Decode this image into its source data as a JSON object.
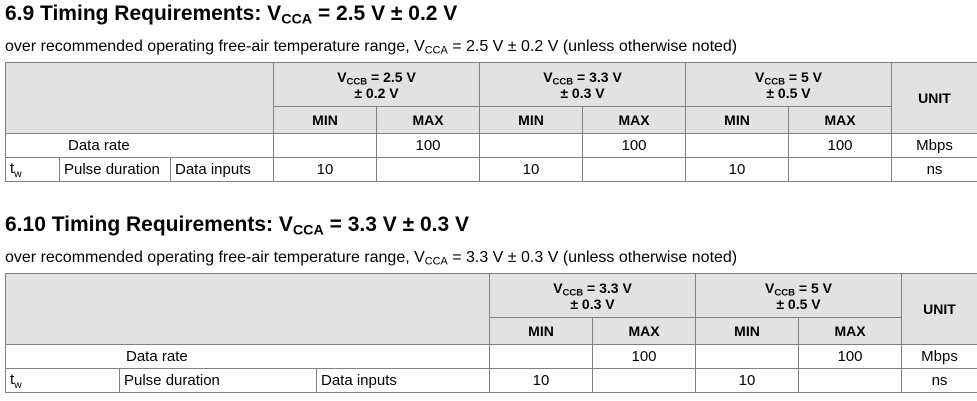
{
  "sections": [
    {
      "heading_prefix": "6.9 Timing Requirements: V",
      "heading_sub": "CCA",
      "heading_suffix": " = 2.5 V ± 0.2 V",
      "cond_prefix": "over recommended operating free-air temperature range, V",
      "cond_sub": "CCA",
      "cond_suffix": " = 2.5 V ± 0.2 V (unless otherwise noted)",
      "groups": [
        {
          "v": "V",
          "sub": "CCB",
          "line1": " = 2.5 V",
          "line2": "± 0.2 V"
        },
        {
          "v": "V",
          "sub": "CCB",
          "line1": " = 3.3 V",
          "line2": "± 0.3 V"
        },
        {
          "v": "V",
          "sub": "CCB",
          "line1": " = 5 V",
          "line2": "± 0.5 V"
        }
      ],
      "min_label": "MIN",
      "max_label": "MAX",
      "unit_label": "UNIT",
      "row_data_rate": {
        "label": "Data rate",
        "values": [
          "",
          "100",
          "",
          "100",
          "",
          "100"
        ],
        "unit": "Mbps"
      },
      "row_pulse": {
        "sym": "t",
        "sym_sub": "w",
        "label": "Pulse duration",
        "sublabel": "Data inputs",
        "values": [
          "10",
          "",
          "10",
          "",
          "10",
          ""
        ],
        "unit": "ns"
      }
    },
    {
      "heading_prefix": "6.10 Timing Requirements: V",
      "heading_sub": "CCA",
      "heading_suffix": " = 3.3 V ± 0.3 V",
      "cond_prefix": "over recommended operating free-air temperature range, V",
      "cond_sub": "CCA",
      "cond_suffix": " = 3.3 V ± 0.3 V (unless otherwise noted)",
      "groups": [
        {
          "v": "V",
          "sub": "CCB",
          "line1": " = 3.3 V",
          "line2": "± 0.3 V"
        },
        {
          "v": "V",
          "sub": "CCB",
          "line1": " = 5 V",
          "line2": "± 0.5 V"
        }
      ],
      "min_label": "MIN",
      "max_label": "MAX",
      "unit_label": "UNIT",
      "row_data_rate": {
        "label": "Data rate",
        "values": [
          "",
          "100",
          "",
          "100"
        ],
        "unit": "Mbps"
      },
      "row_pulse": {
        "sym": "t",
        "sym_sub": "w",
        "label": "Pulse duration",
        "sublabel": "Data inputs",
        "values": [
          "10",
          "",
          "10",
          ""
        ],
        "unit": "ns"
      }
    }
  ]
}
